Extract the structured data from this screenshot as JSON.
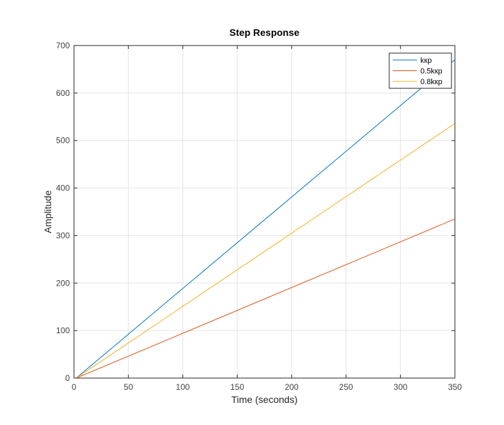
{
  "chart_data": {
    "type": "line",
    "title": "Step Response",
    "xlabel": "Time (seconds)",
    "ylabel": "Amplitude",
    "xlim": [
      0,
      350
    ],
    "ylim": [
      0,
      700
    ],
    "xticks": [
      0,
      50,
      100,
      150,
      200,
      250,
      300,
      350
    ],
    "yticks": [
      0,
      100,
      200,
      300,
      400,
      500,
      600,
      700
    ],
    "grid": true,
    "legend_position": "top-right",
    "series": [
      {
        "name": "kкp",
        "color": "#0072BD",
        "x": [
          2,
          350
        ],
        "y": [
          0,
          670
        ]
      },
      {
        "name": "0.5kкp",
        "color": "#D95319",
        "x": [
          2,
          350
        ],
        "y": [
          0,
          335
        ]
      },
      {
        "name": "0.8kкp",
        "color": "#EDB120",
        "x": [
          2,
          350
        ],
        "y": [
          0,
          536
        ]
      }
    ]
  }
}
